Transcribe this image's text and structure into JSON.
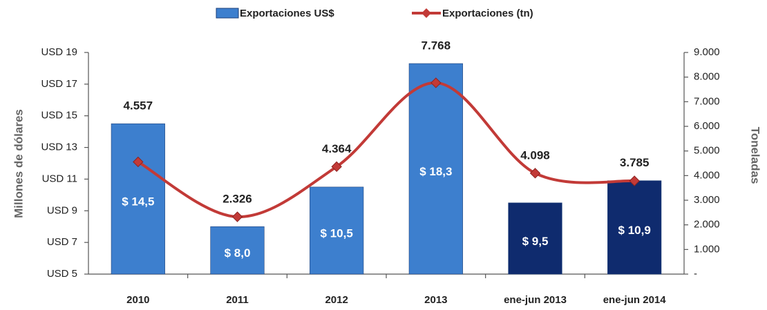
{
  "chart_data": {
    "type": "bar_line",
    "categories": [
      "2010",
      "2011",
      "2012",
      "2013",
      "ene-jun 2013",
      "ene-jun 2014"
    ],
    "series": [
      {
        "name": "Exportaciones US$",
        "color": "#3d7fce",
        "colors": [
          "#3d7fce",
          "#3d7fce",
          "#3d7fce",
          "#3d7fce",
          "#0f2b6e",
          "#0f2b6e"
        ],
        "values": [
          14.5,
          8.0,
          10.5,
          18.3,
          9.5,
          10.9
        ],
        "value_labels": [
          "$ 14,5",
          "$ 8,0",
          "$ 10,5",
          "$ 18,3",
          "$ 9,5",
          "$ 10,9"
        ]
      },
      {
        "name": "Exportaciones (tn)",
        "color": "#c23a37",
        "axis": "y2",
        "values": [
          4557,
          2326,
          4364,
          7768,
          4098,
          3785
        ],
        "value_labels": [
          "4.557",
          "2.326",
          "4.364",
          "7.768",
          "4.098",
          "3.785"
        ]
      }
    ],
    "ylabel": "Millones de dólares",
    "y2label": "Toneladas",
    "ylim": [
      5,
      19
    ],
    "yticks": [
      {
        "value": 5,
        "label": "USD 5"
      },
      {
        "value": 7,
        "label": "USD 7"
      },
      {
        "value": 9,
        "label": "USD 9"
      },
      {
        "value": 11,
        "label": "USD 11"
      },
      {
        "value": 13,
        "label": "USD 13"
      },
      {
        "value": 15,
        "label": "USD 15"
      },
      {
        "value": 17,
        "label": "USD 17"
      },
      {
        "value": 19,
        "label": "USD 19"
      }
    ],
    "y2lim": [
      0,
      9000
    ],
    "y2ticks": [
      {
        "value": 0,
        "label": "-"
      },
      {
        "value": 1000,
        "label": "1.000"
      },
      {
        "value": 2000,
        "label": "2.000"
      },
      {
        "value": 3000,
        "label": "3.000"
      },
      {
        "value": 4000,
        "label": "4.000"
      },
      {
        "value": 5000,
        "label": "5.000"
      },
      {
        "value": 6000,
        "label": "6.000"
      },
      {
        "value": 7000,
        "label": "7.000"
      },
      {
        "value": 8000,
        "label": "8.000"
      },
      {
        "value": 9000,
        "label": "9.000"
      }
    ],
    "grid": false,
    "legend": "top"
  }
}
